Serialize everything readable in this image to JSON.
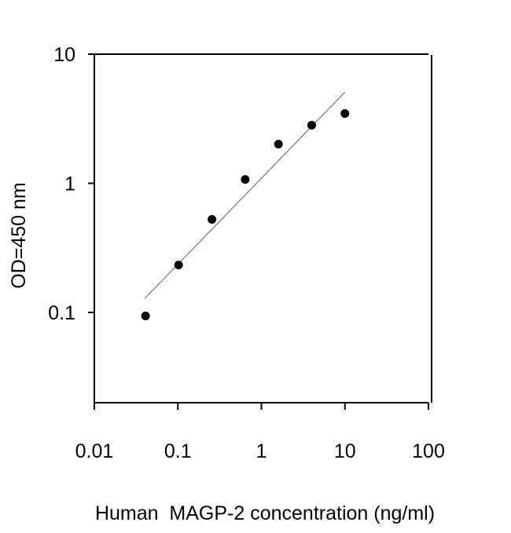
{
  "chart_data": {
    "type": "scatter",
    "title": "",
    "xlabel": "Human  MAGP-2 concentration (ng/ml)",
    "ylabel": "OD=450 nm",
    "x_scale": "log",
    "y_scale": "log",
    "xlim": [
      0.01,
      100
    ],
    "ylim": [
      0.02,
      10
    ],
    "x_ticks": [
      "0.01",
      "0.1",
      "1",
      "10",
      "100"
    ],
    "x_tick_values": [
      0.01,
      0.1,
      1,
      10,
      100
    ],
    "y_ticks": [
      "0.1",
      "1",
      "10"
    ],
    "y_tick_values": [
      0.1,
      1,
      10
    ],
    "grid": false,
    "series": [
      {
        "x": [
          0.041,
          0.102,
          0.256,
          0.64,
          1.6,
          4,
          10
        ],
        "y": [
          0.094,
          0.233,
          0.525,
          1.07,
          2.01,
          2.82,
          3.47
        ],
        "marker": "filled-circle",
        "color": "#000000"
      }
    ],
    "fit_line": {
      "x": [
        0.04,
        10
      ],
      "y": [
        0.128,
        5.08
      ],
      "color": "#777777"
    }
  }
}
